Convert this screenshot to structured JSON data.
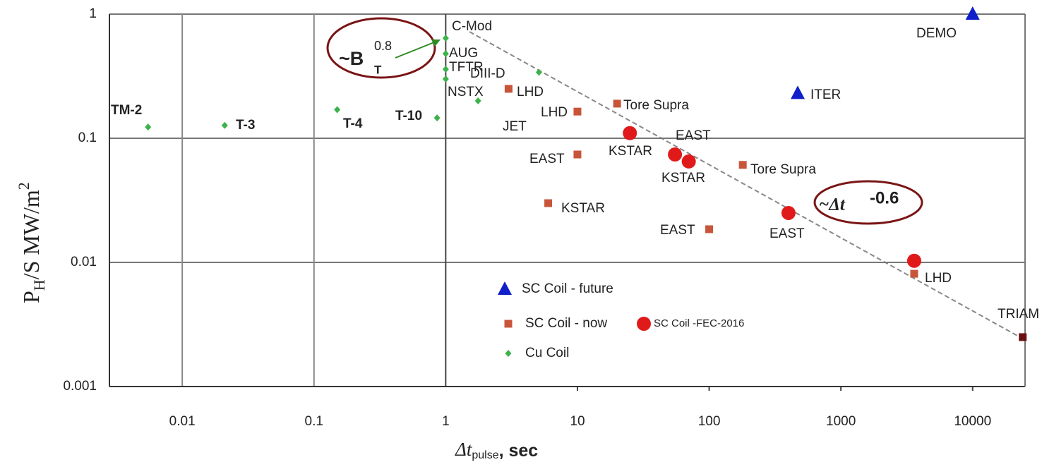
{
  "chart_data": {
    "type": "scatter",
    "xlabel": [
      "Δt",
      "pulse",
      ", sec"
    ],
    "ylabel": [
      "P",
      "H",
      "/S  MW/m",
      "2"
    ],
    "xscale": "log",
    "yscale": "log",
    "xlim": [
      0.0028,
      25000
    ],
    "ylim": [
      0.001,
      1
    ],
    "xticks": [
      0.01,
      0.1,
      1,
      10,
      100,
      1000,
      10000
    ],
    "yticks": [
      0.001,
      0.01,
      0.1,
      1
    ],
    "xgrid_upto": 1,
    "grid": true,
    "annotations": [
      {
        "parts": [
          "~B",
          "T",
          "0.8"
        ],
        "color": "#2e8b22",
        "ring": "#7a1515"
      },
      {
        "parts": [
          "~Δt",
          "-0.6"
        ],
        "color": "#111",
        "ring": "#7a1515"
      }
    ],
    "series": [
      {
        "name": "SC Coil - future",
        "color": "#1020c8",
        "marker": "triangle",
        "x": [
          10000,
          470
        ],
        "values": [
          1,
          0.23
        ],
        "labels": [
          "DEMO",
          "ITER"
        ]
      },
      {
        "name": "SC Coil - now",
        "color": "#c8553a",
        "marker": "square",
        "point_colors": [
          null,
          null,
          null,
          null,
          null,
          null,
          null,
          null,
          "#6b1010"
        ],
        "x": [
          3,
          10,
          20,
          10,
          6,
          100,
          180,
          3600,
          24000
        ],
        "values": [
          0.25,
          0.164,
          0.19,
          0.074,
          0.03,
          0.0185,
          0.061,
          0.0081,
          0.0025
        ],
        "labels": [
          "LHD",
          "LHD",
          "Tore Supra",
          "EAST",
          "KSTAR",
          "EAST",
          "Tore Supra",
          "LHD",
          "TRIAM"
        ]
      },
      {
        "name": "SC Coil -FEC-2016",
        "color": "#e01a1a",
        "marker": "circle",
        "x": [
          25,
          55,
          70,
          400,
          3600
        ],
        "values": [
          0.11,
          0.074,
          0.065,
          0.025,
          0.0103
        ],
        "labels": [
          "KSTAR",
          "EAST",
          "KSTAR",
          "EAST",
          null
        ]
      },
      {
        "name": "Cu Coil",
        "color": "#3cb34a",
        "marker": "diamond",
        "x": [
          0.0055,
          0.021,
          0.15,
          0.86,
          1,
          1,
          1,
          1,
          1.76,
          5.1
        ],
        "values": [
          0.123,
          0.127,
          0.17,
          0.146,
          0.64,
          0.48,
          0.36,
          0.3,
          0.2,
          0.34
        ],
        "labels": [
          "TM-2",
          "T-3",
          "T-4",
          "T-10",
          "C-Mod",
          "AUG",
          "TFTR",
          "NSTX",
          "JET",
          "DIII-D"
        ]
      }
    ]
  }
}
